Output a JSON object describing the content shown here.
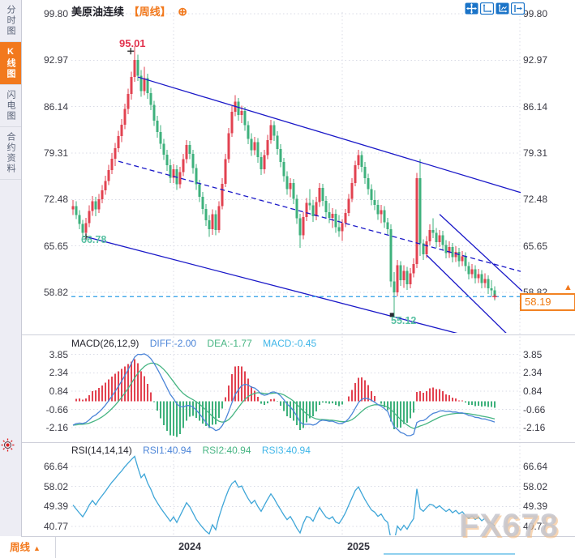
{
  "header": {
    "title": "美原油连续",
    "timeframe": "【周线】",
    "link_icon": "⊕"
  },
  "toolbar": {
    "icons": [
      "pan",
      "axis-scale",
      "axis-scale-filled",
      "exit"
    ]
  },
  "sidebar": {
    "items": [
      {
        "label": "分时图",
        "active": false
      },
      {
        "label": "K线图",
        "active": true
      },
      {
        "label": "闪电图",
        "active": false
      },
      {
        "label": "合约资料",
        "active": false
      }
    ]
  },
  "price_panel": {
    "axis_ticks": [
      "99.80",
      "92.97",
      "86.14",
      "79.31",
      "72.48",
      "65.65",
      "58.82"
    ],
    "high_label": "95.01",
    "trend_start_label": "66.78",
    "low_label": "55.12",
    "current_price": "58.19",
    "up_arrow": "▲"
  },
  "macd_panel": {
    "name": "MACD(26,12,9)",
    "diff": "DIFF:-2.00",
    "dea": "DEA:-1.77",
    "macd": "MACD:-0.45",
    "axis_ticks": [
      "3.85",
      "2.34",
      "0.84",
      "-0.66",
      "-2.16"
    ]
  },
  "rsi_panel": {
    "name": "RSI(14,14,14)",
    "rsi1": "RSI1:40.94",
    "rsi2": "RSI2:40.94",
    "rsi3": "RSI3:40.94",
    "axis_ticks": [
      "66.64",
      "58.02",
      "49.39",
      "40.77"
    ]
  },
  "bottom_bar": {
    "timeframe": "周线",
    "arrow": "▲",
    "years": [
      "2024",
      "2025"
    ]
  },
  "watermark": "FX678",
  "chart_data": {
    "type": "candlestick",
    "title": "美原油连续 (WTI crude oil continuous), weekly candles with MACD and RSI",
    "price_ticks": [
      99.8,
      92.97,
      86.14,
      79.31,
      72.48,
      65.65,
      58.82
    ],
    "current_price": 58.19,
    "high": 95.01,
    "low": 55.12,
    "year_gridlines": [
      {
        "label": "2024",
        "week_index": 31
      },
      {
        "label": "2025",
        "week_index": 83
      }
    ],
    "candles_ohlc": [
      [
        71.0,
        72.4,
        70.2,
        71.5
      ],
      [
        71.5,
        72.2,
        69.6,
        70.2
      ],
      [
        70.2,
        70.9,
        68.1,
        68.9
      ],
      [
        68.9,
        69.5,
        66.78,
        67.6
      ],
      [
        67.6,
        69.8,
        66.9,
        69.0
      ],
      [
        69.0,
        71.6,
        68.4,
        70.8
      ],
      [
        70.8,
        73.0,
        70.1,
        72.2
      ],
      [
        72.2,
        72.9,
        70.0,
        71.0
      ],
      [
        71.0,
        73.3,
        70.5,
        72.5
      ],
      [
        72.5,
        74.6,
        71.9,
        73.8
      ],
      [
        73.8,
        76.0,
        73.2,
        75.2
      ],
      [
        75.2,
        77.6,
        74.6,
        76.8
      ],
      [
        76.8,
        79.3,
        76.2,
        78.5
      ],
      [
        78.5,
        80.8,
        77.4,
        80.0
      ],
      [
        80.0,
        82.6,
        79.4,
        81.8
      ],
      [
        81.8,
        84.3,
        80.9,
        83.5
      ],
      [
        83.5,
        86.6,
        82.8,
        85.8
      ],
      [
        85.8,
        88.8,
        85.0,
        88.0
      ],
      [
        88.0,
        91.3,
        87.2,
        90.5
      ],
      [
        90.5,
        95.01,
        89.8,
        93.0
      ],
      [
        93.0,
        93.8,
        89.9,
        90.7
      ],
      [
        90.7,
        91.5,
        87.6,
        88.4
      ],
      [
        88.4,
        92.0,
        87.8,
        90.3
      ],
      [
        90.3,
        91.0,
        87.3,
        88.1
      ],
      [
        88.1,
        88.9,
        85.6,
        86.4
      ],
      [
        86.4,
        87.0,
        83.3,
        84.1
      ],
      [
        84.1,
        84.8,
        81.6,
        82.4
      ],
      [
        82.4,
        83.4,
        79.9,
        80.7
      ],
      [
        80.7,
        81.4,
        78.3,
        79.1
      ],
      [
        79.1,
        79.8,
        76.7,
        77.5
      ],
      [
        77.5,
        78.4,
        74.9,
        75.7
      ],
      [
        75.7,
        77.7,
        74.9,
        76.9
      ],
      [
        76.9,
        77.5,
        73.9,
        74.7
      ],
      [
        74.7,
        77.3,
        74.1,
        76.5
      ],
      [
        76.5,
        79.2,
        75.9,
        78.4
      ],
      [
        78.4,
        81.2,
        77.8,
        80.5
      ],
      [
        80.5,
        81.1,
        78.4,
        79.2
      ],
      [
        79.2,
        79.8,
        76.3,
        77.1
      ],
      [
        77.1,
        77.7,
        73.9,
        74.7
      ],
      [
        74.7,
        75.4,
        72.1,
        72.9
      ],
      [
        72.9,
        73.6,
        70.3,
        71.1
      ],
      [
        71.1,
        71.8,
        68.6,
        69.4
      ],
      [
        69.4,
        70.2,
        67.0,
        68.1
      ],
      [
        68.1,
        71.0,
        67.3,
        70.3
      ],
      [
        70.3,
        70.9,
        67.2,
        68.0
      ],
      [
        68.0,
        72.2,
        67.6,
        71.5
      ],
      [
        71.5,
        75.6,
        71.0,
        74.8
      ],
      [
        74.8,
        79.2,
        74.3,
        78.4
      ],
      [
        78.4,
        83.0,
        77.9,
        82.2
      ],
      [
        82.2,
        86.2,
        81.7,
        85.4
      ],
      [
        85.4,
        87.8,
        84.7,
        86.9
      ],
      [
        86.9,
        87.4,
        84.1,
        84.9
      ],
      [
        84.9,
        86.3,
        83.7,
        85.5
      ],
      [
        85.5,
        86.1,
        82.6,
        83.4
      ],
      [
        83.4,
        84.0,
        80.6,
        81.4
      ],
      [
        81.4,
        82.2,
        78.9,
        79.7
      ],
      [
        79.7,
        81.7,
        79.0,
        80.9
      ],
      [
        80.9,
        81.5,
        77.9,
        78.7
      ],
      [
        78.7,
        79.4,
        76.1,
        76.9
      ],
      [
        76.9,
        79.8,
        76.3,
        79.0
      ],
      [
        79.0,
        82.0,
        78.4,
        81.2
      ],
      [
        81.2,
        84.2,
        80.7,
        83.4
      ],
      [
        83.4,
        84.0,
        81.1,
        81.9
      ],
      [
        81.9,
        82.5,
        79.1,
        79.9
      ],
      [
        79.9,
        80.6,
        77.2,
        78.0
      ],
      [
        78.0,
        78.6,
        75.1,
        75.9
      ],
      [
        75.9,
        76.6,
        73.2,
        74.0
      ],
      [
        74.0,
        75.6,
        72.8,
        74.9
      ],
      [
        74.9,
        75.5,
        71.8,
        72.6
      ],
      [
        72.6,
        73.2,
        68.9,
        69.7
      ],
      [
        69.7,
        70.4,
        65.4,
        67.2
      ],
      [
        67.2,
        70.6,
        66.6,
        69.9
      ],
      [
        69.9,
        72.7,
        69.3,
        72.0
      ],
      [
        72.0,
        74.0,
        70.9,
        71.6
      ],
      [
        71.6,
        72.4,
        69.2,
        70.0
      ],
      [
        70.0,
        72.9,
        69.4,
        72.1
      ],
      [
        72.1,
        74.9,
        71.4,
        74.2
      ],
      [
        74.2,
        74.8,
        71.5,
        72.3
      ],
      [
        72.3,
        73.0,
        69.8,
        70.6
      ],
      [
        70.6,
        71.9,
        69.0,
        69.8
      ],
      [
        69.8,
        71.2,
        68.3,
        70.4
      ],
      [
        70.4,
        71.0,
        67.6,
        68.4
      ],
      [
        68.4,
        70.2,
        67.0,
        67.8
      ],
      [
        67.8,
        69.6,
        66.4,
        69.0
      ],
      [
        69.0,
        71.1,
        68.4,
        70.5
      ],
      [
        70.5,
        73.3,
        70.0,
        72.6
      ],
      [
        72.6,
        75.6,
        72.1,
        74.9
      ],
      [
        74.9,
        78.2,
        74.4,
        77.5
      ],
      [
        77.5,
        79.8,
        76.9,
        79.0
      ],
      [
        79.0,
        79.6,
        76.5,
        77.3
      ],
      [
        77.3,
        78.0,
        74.8,
        75.6
      ],
      [
        75.6,
        76.3,
        73.2,
        74.0
      ],
      [
        74.0,
        74.7,
        71.6,
        72.4
      ],
      [
        72.4,
        73.8,
        70.9,
        71.7
      ],
      [
        71.7,
        72.4,
        69.5,
        70.3
      ],
      [
        70.3,
        71.7,
        69.0,
        70.9
      ],
      [
        70.9,
        71.5,
        68.3,
        69.1
      ],
      [
        69.1,
        69.8,
        67.3,
        68.1
      ],
      [
        68.1,
        68.8,
        59.6,
        60.4
      ],
      [
        60.4,
        61.8,
        55.12,
        58.8
      ],
      [
        58.8,
        63.6,
        58.2,
        62.8
      ],
      [
        62.8,
        63.4,
        59.8,
        60.6
      ],
      [
        60.6,
        62.8,
        59.5,
        62.0
      ],
      [
        62.0,
        62.6,
        59.2,
        60.0
      ],
      [
        60.0,
        62.4,
        59.4,
        61.6
      ],
      [
        61.6,
        63.8,
        61.0,
        63.0
      ],
      [
        63.0,
        76.4,
        62.4,
        75.6
      ],
      [
        75.6,
        78.4,
        64.2,
        66.0
      ],
      [
        66.0,
        66.6,
        63.6,
        64.4
      ],
      [
        64.4,
        67.1,
        63.9,
        66.3
      ],
      [
        66.3,
        68.8,
        65.7,
        68.0
      ],
      [
        68.0,
        69.7,
        66.8,
        67.6
      ],
      [
        67.6,
        68.3,
        65.4,
        66.2
      ],
      [
        66.2,
        68.0,
        65.5,
        67.2
      ],
      [
        67.2,
        67.9,
        65.0,
        65.8
      ],
      [
        65.8,
        66.5,
        63.8,
        64.6
      ],
      [
        64.6,
        66.3,
        63.9,
        65.5
      ],
      [
        65.5,
        66.1,
        63.2,
        64.0
      ],
      [
        64.0,
        65.6,
        63.3,
        64.8
      ],
      [
        64.8,
        65.4,
        62.6,
        63.4
      ],
      [
        63.4,
        64.9,
        62.7,
        64.1
      ],
      [
        64.1,
        64.7,
        61.9,
        62.7
      ],
      [
        62.7,
        63.3,
        60.7,
        61.5
      ],
      [
        61.5,
        63.0,
        60.9,
        62.2
      ],
      [
        62.2,
        62.8,
        60.1,
        60.9
      ],
      [
        60.9,
        62.3,
        60.2,
        61.5
      ],
      [
        61.5,
        62.1,
        59.4,
        60.2
      ],
      [
        60.2,
        61.6,
        59.5,
        60.8
      ],
      [
        60.8,
        61.3,
        58.6,
        59.4
      ],
      [
        59.4,
        60.6,
        58.3,
        59.1
      ],
      [
        59.1,
        59.7,
        57.6,
        58.19
      ]
    ],
    "trendlines": [
      {
        "from_week": 20,
        "from_price": 90.5,
        "to_week": 138,
        "to_price": 73.5,
        "style": "solid"
      },
      {
        "from_week": 4,
        "from_price": 67.0,
        "to_week": 120,
        "to_price": 52.6,
        "style": "solid"
      },
      {
        "from_week": 14,
        "from_price": 78.1,
        "to_week": 138,
        "to_price": 61.9,
        "style": "dashed"
      },
      {
        "from_week": 113,
        "from_price": 70.3,
        "to_week": 138.5,
        "to_price": 59.0,
        "style": "solid"
      },
      {
        "from_week": 109,
        "from_price": 64.3,
        "to_week": 134,
        "to_price": 52.6,
        "style": "solid"
      }
    ],
    "markers": [
      {
        "week": 17.8,
        "price": 94.3,
        "shape": "cross"
      },
      {
        "week": 4,
        "price": 67.0,
        "shape": "cross"
      },
      {
        "week": 98.3,
        "price": 55.5,
        "shape": "square"
      },
      {
        "week": 130,
        "price": 58.19,
        "shape": "cross-red"
      }
    ],
    "annotations": [
      {
        "text": "95.01",
        "week": 19,
        "price": 95.01
      },
      {
        "text": "66.78",
        "week": 4,
        "price": 66.78
      },
      {
        "text": "55.12",
        "week": 99,
        "price": 55.12
      }
    ],
    "macd": {
      "params": [
        26,
        12,
        9
      ],
      "diff": -2.0,
      "dea": -1.77,
      "macd": -0.45,
      "ticks": [
        3.85,
        2.34,
        0.84,
        -0.66,
        -2.16
      ]
    },
    "rsi": {
      "params": [
        14,
        14,
        14
      ],
      "rsi1": 40.94,
      "rsi2": 40.94,
      "rsi3": 40.94,
      "ticks": [
        66.64,
        58.02,
        49.39,
        40.77
      ]
    },
    "colors": {
      "up": "#e24250",
      "down": "#3eb17c",
      "trend": "#1a18c8",
      "current_line": "#2d9fe8",
      "diff_line": "#4c85d8",
      "dea_line": "#47b583",
      "rsi_line": "#3fa6d8",
      "grid": "#d9dbe6",
      "accent": "#f2791d",
      "high_label": "#e2334e",
      "low_label": "#57c0a2"
    }
  }
}
